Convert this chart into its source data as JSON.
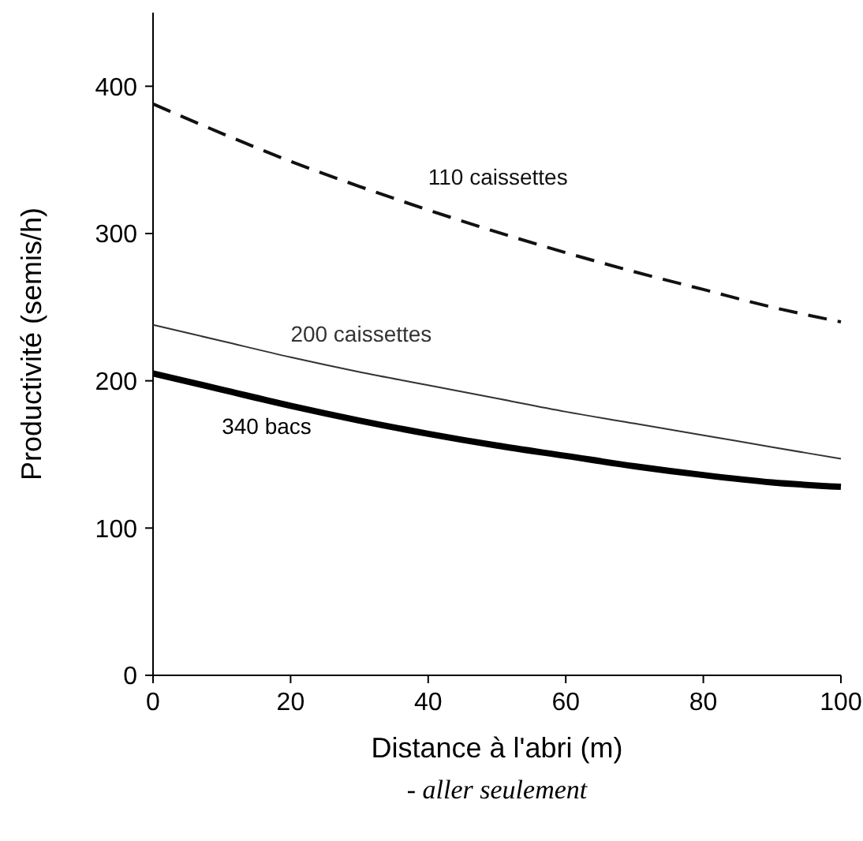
{
  "chart_data": {
    "type": "line",
    "xlabel": "Distance à l'abri (m)",
    "ylabel": "Productivité (semis/h)",
    "xlim": [
      0,
      100
    ],
    "ylim": [
      0,
      450
    ],
    "xticks": [
      0,
      20,
      40,
      60,
      80,
      100
    ],
    "yticks": [
      0,
      100,
      200,
      300,
      400
    ],
    "grid": false,
    "x": [
      0,
      10,
      20,
      30,
      40,
      50,
      60,
      70,
      80,
      90,
      100
    ],
    "series": [
      {
        "name": "110 caissettes",
        "color": "#111111",
        "line_style": "dashed",
        "values": [
          388,
          368,
          349,
          332,
          316,
          301,
          287,
          274,
          262,
          250,
          240
        ]
      },
      {
        "name": "200 caissettes",
        "color": "#333333",
        "line_style": "solid",
        "values": [
          238,
          227,
          216,
          206,
          197,
          188,
          179,
          171,
          163,
          155,
          147
        ]
      },
      {
        "name": "340 bacs",
        "color": "#000000",
        "line_style": "solid",
        "values": [
          205,
          194,
          183,
          173,
          164,
          156,
          149,
          142,
          136,
          131,
          128
        ]
      }
    ],
    "annotations": [
      "- aller seulement"
    ]
  }
}
